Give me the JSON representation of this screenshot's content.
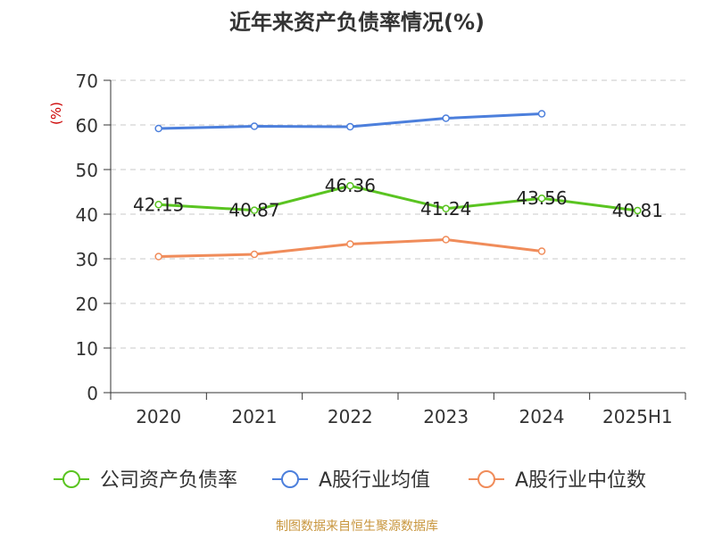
{
  "chart_data": {
    "type": "line",
    "title": "近年来资产负债率情况(%)",
    "ylabel": "(%)",
    "xlabel": "",
    "categories": [
      "2020",
      "2021",
      "2022",
      "2023",
      "2024",
      "2025H1"
    ],
    "ylim": [
      0,
      70
    ],
    "yticks": [
      0,
      10,
      20,
      30,
      40,
      50,
      60,
      70
    ],
    "grid": true,
    "legend_position": "bottom",
    "series": [
      {
        "name": "公司资产负债率",
        "color": "#5ac421",
        "values": [
          42.15,
          40.87,
          46.36,
          41.24,
          43.56,
          40.81
        ],
        "labels": [
          "42.15",
          "40.87",
          "46.36",
          "41.24",
          "43.56",
          "40.81"
        ]
      },
      {
        "name": "A股行业均值",
        "color": "#4c7fdc",
        "values": [
          59.2,
          59.7,
          59.6,
          61.5,
          62.5,
          null
        ]
      },
      {
        "name": "A股行业中位数",
        "color": "#f08c5a",
        "values": [
          30.5,
          31.0,
          33.3,
          34.3,
          31.7,
          null
        ]
      }
    ],
    "source": "制图数据来自恒生聚源数据库",
    "source_color": "#c8963e",
    "ylabel_color": "#cc0000"
  }
}
